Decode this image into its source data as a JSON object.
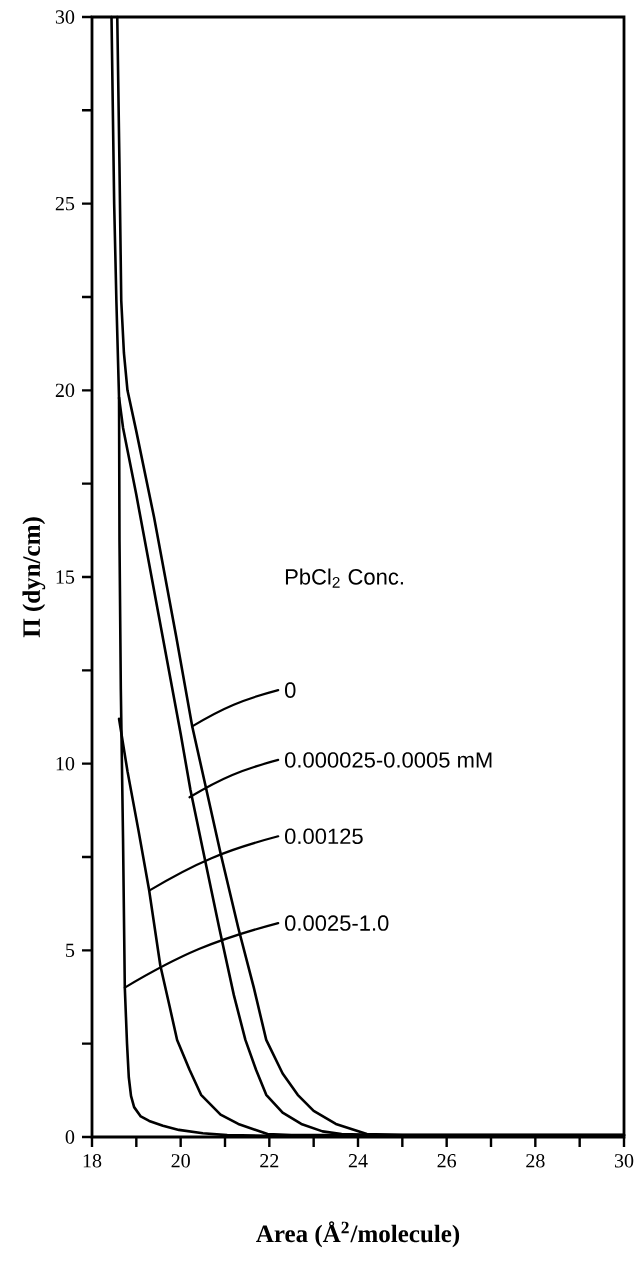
{
  "chart_data": {
    "type": "line",
    "xlabel": "Area (Å$^{2}$/molecule)",
    "ylabel": "Π (dyn/cm)",
    "xlim": [
      18,
      30
    ],
    "ylim": [
      0,
      30
    ],
    "xticks": [
      18,
      {
        "value": 19,
        "label": null
      },
      20,
      {
        "value": 21,
        "label": null
      },
      22,
      {
        "value": 23,
        "label": null
      },
      24,
      {
        "value": 25,
        "label": null
      },
      26,
      {
        "value": 27,
        "label": null
      },
      28,
      {
        "value": 29,
        "label": null
      },
      30
    ],
    "yticks": [
      0,
      {
        "value": 2.5,
        "label": null
      },
      5,
      {
        "value": 7.5,
        "label": null
      },
      10,
      {
        "value": 12.5,
        "label": null
      },
      15,
      {
        "value": 17.5,
        "label": null
      },
      20,
      {
        "value": 22.5,
        "label": null
      },
      25,
      {
        "value": 27.5,
        "label": null
      },
      30
    ],
    "series": [
      {
        "color": "#000000",
        "x": [
          18.57,
          18.62,
          18.66,
          18.72,
          18.8,
          19.0,
          19.4,
          19.9,
          20.26,
          20.53,
          20.9,
          21.3,
          21.65,
          21.93,
          22.3,
          22.64,
          23.0,
          23.5,
          24.2,
          25.0,
          30.0
        ],
        "values": [
          30,
          26,
          22.4,
          21.0,
          20.0,
          18.9,
          16.6,
          13.4,
          11.0,
          9.57,
          7.6,
          5.6,
          4.0,
          2.6,
          1.7,
          1.13,
          0.7,
          0.35,
          0.08,
          0.05,
          0.05
        ]
      },
      {
        "color": "#000000",
        "x": [
          18.44,
          18.5,
          18.55,
          18.61,
          18.7,
          19.0,
          19.5,
          20.0,
          20.22,
          20.5,
          20.87,
          21.2,
          21.46,
          21.7,
          21.93,
          22.3,
          22.72,
          23.2,
          23.63,
          24.5,
          30.0
        ],
        "values": [
          30,
          25,
          22.4,
          19.8,
          19.0,
          17.2,
          14.0,
          10.8,
          9.3,
          7.7,
          5.6,
          3.8,
          2.6,
          1.8,
          1.13,
          0.65,
          0.35,
          0.15,
          0.08,
          0.05,
          0.05
        ]
      },
      {
        "color": "#000000",
        "x": [
          18.61,
          18.8,
          19.05,
          19.29,
          19.54,
          19.75,
          19.92,
          20.2,
          20.46,
          20.9,
          21.3,
          21.96,
          22.5,
          30.0
        ],
        "values": [
          11.2,
          9.8,
          8.2,
          6.6,
          4.6,
          3.5,
          2.6,
          1.8,
          1.13,
          0.6,
          0.35,
          0.08,
          0.05,
          0.05
        ]
      },
      {
        "color": "#000000",
        "x": [
          18.61,
          18.62,
          18.65,
          18.7,
          18.74,
          18.79,
          18.83,
          18.88,
          18.95,
          19.1,
          19.29,
          19.6,
          19.96,
          20.5,
          21.05,
          22.0,
          30.0
        ],
        "values": [
          19.8,
          16,
          12,
          8,
          4.0,
          2.5,
          1.6,
          1.1,
          0.8,
          0.55,
          0.43,
          0.3,
          0.19,
          0.1,
          0.05,
          0.03,
          0.03
        ]
      }
    ],
    "annotations": [
      "PbCl$_{2}$ Conc.",
      {
        "text": "0",
        "x": 20.26,
        "y": 11.0
      },
      {
        "text": "0.000025-0.0005 mM",
        "x": 20.2,
        "y": 9.1
      },
      {
        "text": "0.00125",
        "x": 19.29,
        "y": 6.6
      },
      {
        "text": "0.0025-1.0",
        "x": 18.74,
        "y": 4.0
      }
    ]
  }
}
